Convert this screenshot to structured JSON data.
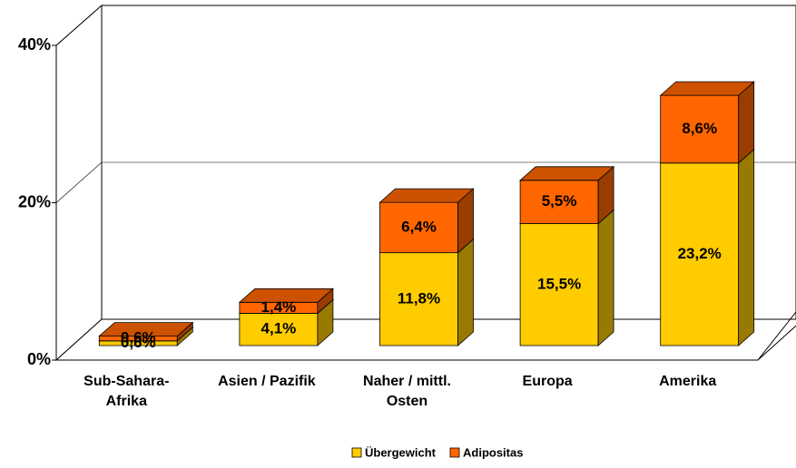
{
  "chart_data": {
    "type": "bar3d_stacked",
    "categories": [
      "Sub-Sahara-Afrika",
      "Asien / Pazifik",
      "Naher / mittl. Osten",
      "Europa",
      "Amerika"
    ],
    "series": [
      {
        "name": "Übergewicht",
        "color": "#ffcc00",
        "values": [
          0.6,
          4.1,
          11.8,
          15.5,
          23.2
        ],
        "value_labels": [
          "0,6%",
          "4,1%",
          "11,8%",
          "15,5%",
          "23,2%"
        ]
      },
      {
        "name": "Adipositas",
        "color": "#ff6600",
        "values": [
          0.6,
          1.4,
          6.4,
          5.5,
          8.6
        ],
        "value_labels": [
          "0,6%",
          "1,4%",
          "6,4%",
          "5,5%",
          "8,6%"
        ]
      }
    ],
    "ylim": [
      0,
      40
    ],
    "yticks": [
      {
        "value": 0,
        "label": "0%"
      },
      {
        "value": 20,
        "label": "20%"
      },
      {
        "value": 40,
        "label": "40%"
      }
    ],
    "grid": true,
    "legend": "bottom"
  }
}
